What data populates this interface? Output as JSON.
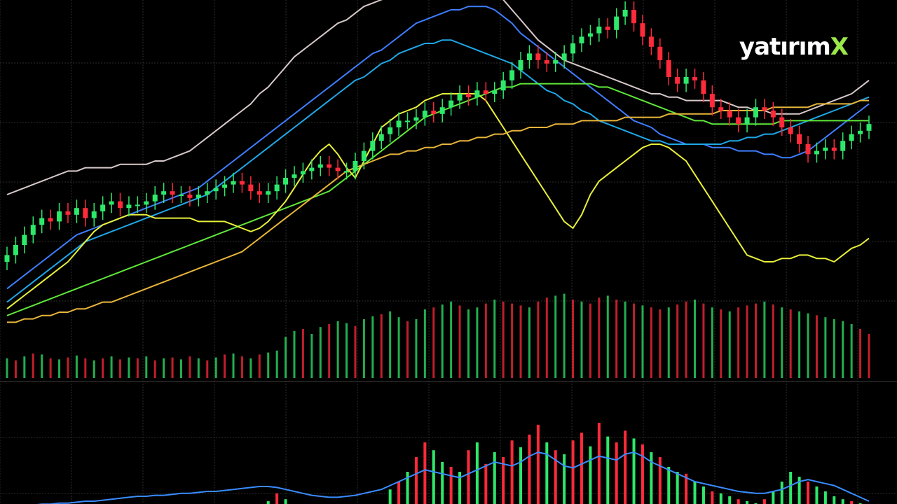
{
  "brand": {
    "text": "yatırım",
    "mark": "X",
    "mark_color": "#9be84a",
    "text_color": "#ffffff"
  },
  "colors": {
    "background": "#000000",
    "grid": "#2a2e2a",
    "up": "#2ee86a",
    "down": "#ff2a3a",
    "ma_white": "#d7c9c9",
    "ma_blue": "#3f7dff",
    "ma_cyan": "#1fa8e8",
    "ma_green": "#5fe83a",
    "ma_yellow": "#e8f03a",
    "ma_orange": "#e8b53a",
    "indicator_line": "#3a8cff"
  },
  "chart_data": [
    {
      "type": "candlestick",
      "panel": "price",
      "grid": true,
      "legend": "none",
      "ylim": [
        0,
        100
      ],
      "x_count": 100,
      "close": [
        22,
        25,
        28,
        31,
        33,
        32,
        35,
        34,
        36,
        33,
        35,
        37,
        38,
        36,
        37,
        37,
        38,
        40,
        41,
        40,
        40,
        39,
        40,
        41,
        42,
        43,
        44,
        43,
        41,
        40,
        41,
        43,
        45,
        46,
        47,
        48,
        49,
        48,
        47,
        47,
        50,
        53,
        56,
        58,
        60,
        62,
        62,
        63,
        65,
        64,
        66,
        68,
        70,
        69,
        71,
        70,
        71,
        74,
        77,
        80,
        82,
        80,
        79,
        80,
        82,
        85,
        87,
        88,
        90,
        89,
        93,
        95,
        91,
        87,
        84,
        80,
        75,
        73,
        75,
        74,
        70,
        66,
        65,
        63,
        61,
        63,
        66,
        65,
        63,
        60,
        58,
        55,
        52,
        53,
        54,
        53,
        56,
        58,
        59,
        61
      ],
      "moving_averages": [
        {
          "color_key": "ma_white",
          "values": [
            40,
            41,
            42,
            43,
            44,
            45,
            46,
            47,
            47,
            48,
            48,
            48,
            48,
            49,
            49,
            49,
            49,
            50,
            50,
            51,
            52,
            53,
            55,
            57,
            59,
            61,
            63,
            65,
            67,
            70,
            72,
            75,
            78,
            81,
            83,
            85,
            87,
            89,
            91,
            92,
            94,
            96,
            97,
            98,
            99,
            99,
            100,
            100,
            100,
            100,
            100,
            100,
            100,
            100,
            100,
            100,
            100,
            98,
            95,
            92,
            89,
            86,
            84,
            82,
            80,
            79,
            78,
            77,
            76,
            75,
            74,
            73,
            72,
            71,
            70,
            70,
            69,
            69,
            68,
            68,
            68,
            68,
            68,
            67,
            66,
            66,
            65,
            65,
            64,
            64,
            64,
            64,
            65,
            66,
            67,
            68,
            69,
            70,
            72,
            74
          ]
        },
        {
          "color_key": "ma_blue",
          "values": [
            12,
            14,
            16,
            18,
            20,
            22,
            24,
            26,
            28,
            29,
            30,
            31,
            32,
            33,
            34,
            35,
            36,
            37,
            38,
            39,
            40,
            41,
            42,
            44,
            46,
            48,
            50,
            52,
            54,
            56,
            58,
            60,
            62,
            64,
            66,
            68,
            70,
            72,
            74,
            76,
            78,
            80,
            82,
            83,
            85,
            87,
            89,
            91,
            92,
            93,
            94,
            95,
            95,
            96,
            96,
            96,
            95,
            93,
            91,
            88,
            86,
            84,
            82,
            80,
            78,
            76,
            74,
            72,
            70,
            68,
            66,
            64,
            62,
            61,
            60,
            58,
            57,
            56,
            55,
            55,
            55,
            54,
            54,
            54,
            53,
            53,
            53,
            52,
            52,
            51,
            51,
            52,
            53,
            55,
            57,
            59,
            61,
            63,
            65,
            67
          ]
        },
        {
          "color_key": "ma_cyan",
          "values": [
            8,
            10,
            12,
            14,
            16,
            18,
            20,
            22,
            24,
            26,
            27,
            28,
            29,
            30,
            31,
            32,
            33,
            34,
            35,
            36,
            37,
            38,
            39,
            40,
            42,
            44,
            46,
            48,
            50,
            52,
            54,
            56,
            58,
            60,
            62,
            64,
            66,
            68,
            70,
            72,
            74,
            75,
            77,
            79,
            80,
            82,
            83,
            84,
            85,
            85,
            86,
            86,
            85,
            84,
            83,
            82,
            81,
            80,
            79,
            77,
            75,
            73,
            71,
            70,
            68,
            67,
            65,
            64,
            62,
            61,
            60,
            59,
            58,
            57,
            56,
            56,
            55,
            55,
            55,
            55,
            55,
            55,
            55,
            56,
            56,
            57,
            57,
            58,
            58,
            59,
            60,
            61,
            62,
            63,
            64,
            65,
            66,
            67,
            68,
            69
          ]
        },
        {
          "color_key": "ma_green",
          "values": [
            4,
            5,
            6,
            7,
            8,
            9,
            10,
            11,
            12,
            13,
            14,
            15,
            16,
            17,
            18,
            19,
            20,
            21,
            22,
            23,
            24,
            25,
            26,
            27,
            28,
            29,
            30,
            31,
            32,
            33,
            34,
            35,
            36,
            37,
            38,
            39,
            40,
            41,
            43,
            45,
            47,
            49,
            51,
            53,
            55,
            57,
            59,
            61,
            63,
            64,
            65,
            66,
            67,
            68,
            69,
            70,
            71,
            72,
            72,
            73,
            73,
            73,
            73,
            73,
            73,
            73,
            73,
            73,
            72,
            72,
            71,
            70,
            69,
            68,
            67,
            66,
            65,
            64,
            63,
            62,
            62,
            61,
            61,
            61,
            61,
            61,
            61,
            61,
            61,
            62,
            62,
            62,
            62,
            62,
            62,
            62,
            62,
            62,
            62,
            62
          ]
        },
        {
          "color_key": "ma_yellow",
          "values": [
            6,
            8,
            10,
            12,
            14,
            16,
            18,
            20,
            23,
            26,
            29,
            31,
            32,
            33,
            34,
            34,
            34,
            33,
            33,
            33,
            33,
            33,
            32,
            32,
            32,
            32,
            31,
            30,
            29,
            30,
            32,
            35,
            38,
            42,
            46,
            50,
            53,
            55,
            52,
            48,
            45,
            50,
            55,
            60,
            62,
            64,
            65,
            66,
            68,
            69,
            70,
            70,
            70,
            70,
            70,
            68,
            64,
            60,
            56,
            52,
            48,
            44,
            40,
            36,
            32,
            30,
            34,
            40,
            44,
            46,
            48,
            50,
            52,
            54,
            55,
            55,
            54,
            52,
            50,
            46,
            42,
            38,
            34,
            30,
            26,
            22,
            21,
            20,
            20,
            21,
            21,
            22,
            22,
            21,
            21,
            20,
            22,
            24,
            25,
            27
          ]
        },
        {
          "color_key": "ma_orange",
          "values": [
            2,
            2,
            3,
            3,
            4,
            4,
            5,
            5,
            6,
            6,
            7,
            8,
            8,
            9,
            10,
            11,
            12,
            13,
            14,
            15,
            16,
            17,
            18,
            19,
            20,
            21,
            22,
            23,
            25,
            27,
            29,
            31,
            33,
            35,
            37,
            39,
            41,
            43,
            45,
            47,
            48,
            49,
            50,
            51,
            52,
            52,
            53,
            53,
            54,
            54,
            55,
            55,
            56,
            56,
            57,
            57,
            58,
            58,
            59,
            59,
            60,
            60,
            60,
            61,
            61,
            61,
            62,
            62,
            62,
            62,
            62,
            63,
            63,
            63,
            63,
            63,
            64,
            64,
            64,
            64,
            64,
            64,
            65,
            65,
            65,
            65,
            65,
            65,
            66,
            66,
            66,
            66,
            66,
            67,
            67,
            67,
            67,
            67,
            68,
            68
          ]
        }
      ]
    },
    {
      "type": "bar",
      "panel": "volume",
      "grid": true,
      "ylim": [
        0,
        100
      ],
      "values": [
        20,
        18,
        22,
        25,
        24,
        20,
        19,
        21,
        23,
        20,
        18,
        20,
        22,
        19,
        21,
        20,
        22,
        18,
        20,
        21,
        19,
        22,
        20,
        18,
        21,
        24,
        25,
        22,
        20,
        24,
        26,
        28,
        42,
        48,
        50,
        45,
        52,
        55,
        58,
        56,
        53,
        60,
        63,
        65,
        68,
        62,
        58,
        60,
        70,
        72,
        75,
        78,
        74,
        70,
        72,
        76,
        80,
        78,
        76,
        74,
        72,
        78,
        82,
        84,
        86,
        80,
        78,
        76,
        82,
        84,
        80,
        78,
        76,
        74,
        72,
        70,
        72,
        75,
        78,
        80,
        76,
        72,
        70,
        68,
        72,
        74,
        76,
        78,
        75,
        72,
        70,
        68,
        66,
        64,
        62,
        60,
        58,
        55,
        50,
        45
      ],
      "directions": [
        "u",
        "d",
        "u",
        "d",
        "u",
        "d",
        "u",
        "d",
        "u",
        "d",
        "u",
        "d",
        "u",
        "d",
        "u",
        "d",
        "u",
        "d",
        "u",
        "d",
        "u",
        "d",
        "u",
        "d",
        "u",
        "d",
        "u",
        "d",
        "u",
        "d",
        "u",
        "u",
        "u",
        "u",
        "d",
        "u",
        "u",
        "d",
        "u",
        "u",
        "d",
        "u",
        "u",
        "d",
        "u",
        "u",
        "d",
        "u",
        "u",
        "d",
        "u",
        "u",
        "d",
        "u",
        "u",
        "d",
        "u",
        "d",
        "d",
        "d",
        "u",
        "d",
        "d",
        "u",
        "u",
        "d",
        "u",
        "d",
        "d",
        "u",
        "d",
        "u",
        "d",
        "u",
        "d",
        "d",
        "u",
        "d",
        "d",
        "u",
        "d",
        "u",
        "d",
        "u",
        "d",
        "d",
        "d",
        "u",
        "d",
        "u",
        "d",
        "u",
        "u",
        "d",
        "u",
        "u",
        "u",
        "u",
        "d",
        "d"
      ]
    },
    {
      "type": "bar",
      "panel": "indicator",
      "grid": true,
      "ylim": [
        0,
        100
      ],
      "values": [
        0,
        0,
        0,
        0,
        0,
        0,
        0,
        0,
        0,
        0,
        0,
        0,
        0,
        0,
        0,
        0,
        0,
        0,
        0,
        0,
        0,
        0,
        0,
        0,
        0,
        0,
        0,
        0,
        0,
        0,
        10,
        18,
        12,
        0,
        0,
        0,
        0,
        0,
        0,
        0,
        0,
        0,
        0,
        0,
        22,
        30,
        40,
        55,
        70,
        62,
        50,
        45,
        40,
        62,
        70,
        48,
        60,
        55,
        72,
        65,
        78,
        88,
        70,
        62,
        58,
        72,
        80,
        66,
        90,
        76,
        70,
        82,
        74,
        68,
        60,
        55,
        45,
        40,
        38,
        30,
        25,
        20,
        18,
        15,
        12,
        10,
        8,
        12,
        20,
        30,
        40,
        35,
        30,
        25,
        20,
        15,
        12,
        10,
        8,
        5
      ],
      "directions": [
        "u",
        "u",
        "u",
        "u",
        "u",
        "u",
        "u",
        "u",
        "u",
        "u",
        "u",
        "u",
        "u",
        "u",
        "u",
        "u",
        "u",
        "u",
        "u",
        "u",
        "u",
        "u",
        "u",
        "u",
        "u",
        "u",
        "u",
        "u",
        "u",
        "u",
        "u",
        "d",
        "u",
        "u",
        "u",
        "u",
        "u",
        "u",
        "u",
        "u",
        "u",
        "u",
        "u",
        "u",
        "u",
        "d",
        "u",
        "d",
        "d",
        "u",
        "u",
        "d",
        "u",
        "d",
        "u",
        "d",
        "u",
        "d",
        "d",
        "u",
        "d",
        "d",
        "u",
        "d",
        "u",
        "d",
        "d",
        "u",
        "d",
        "u",
        "d",
        "d",
        "u",
        "d",
        "u",
        "d",
        "u",
        "u",
        "d",
        "u",
        "u",
        "d",
        "u",
        "u",
        "d",
        "u",
        "u",
        "d",
        "u",
        "u",
        "u",
        "u",
        "d",
        "u",
        "u",
        "u",
        "u",
        "d",
        "u",
        "u"
      ],
      "line": [
        5,
        5,
        6,
        6,
        7,
        7,
        8,
        8,
        9,
        10,
        10,
        11,
        12,
        13,
        14,
        15,
        15,
        16,
        16,
        17,
        18,
        18,
        19,
        20,
        20,
        21,
        22,
        23,
        24,
        25,
        25,
        24,
        22,
        20,
        18,
        16,
        15,
        14,
        14,
        15,
        16,
        18,
        20,
        22,
        26,
        30,
        34,
        38,
        42,
        40,
        38,
        36,
        34,
        38,
        42,
        46,
        50,
        48,
        46,
        50,
        56,
        60,
        58,
        52,
        46,
        44,
        48,
        52,
        56,
        54,
        52,
        58,
        60,
        56,
        50,
        46,
        42,
        38,
        34,
        30,
        28,
        26,
        24,
        22,
        20,
        19,
        18,
        18,
        20,
        22,
        26,
        30,
        32,
        30,
        28,
        26,
        22,
        18,
        14,
        10
      ]
    }
  ]
}
